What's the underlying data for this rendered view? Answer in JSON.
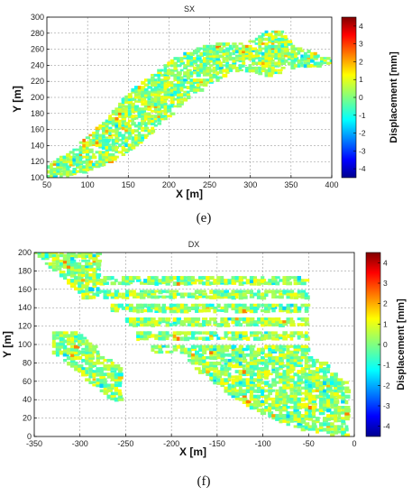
{
  "chart_data": [
    {
      "type": "heatmap",
      "title": "SX",
      "caption": "(e)",
      "xlabel": "X [m]",
      "ylabel": "Y [m]",
      "xlim": [
        50,
        400
      ],
      "ylim": [
        100,
        300
      ],
      "xticks": [
        50,
        100,
        150,
        200,
        250,
        300,
        350,
        400
      ],
      "yticks": [
        100,
        120,
        140,
        160,
        180,
        200,
        220,
        240,
        260,
        280,
        300
      ],
      "grid": true,
      "colorbar": {
        "label": "Displacement [mm]",
        "range": [
          -4.5,
          4.5
        ],
        "ticks": [
          -4,
          -3,
          -2,
          -1,
          0,
          1,
          2,
          3,
          4
        ],
        "tick_labels": [
          "-4",
          "-3",
          "-2",
          "-1",
          "0",
          "1",
          "2",
          "3",
          "4"
        ],
        "colormap": "jet"
      },
      "dominant_value_range": [
        -0.8,
        1.2
      ],
      "covered_region_description": "diagonal band from lower-left to upper-right",
      "coverage": [
        {
          "x": 55,
          "y0": 100,
          "y1": 118
        },
        {
          "x": 75,
          "y0": 100,
          "y1": 130
        },
        {
          "x": 100,
          "y0": 108,
          "y1": 150
        },
        {
          "x": 125,
          "y0": 118,
          "y1": 175
        },
        {
          "x": 150,
          "y0": 130,
          "y1": 205
        },
        {
          "x": 175,
          "y0": 150,
          "y1": 225
        },
        {
          "x": 200,
          "y0": 175,
          "y1": 245
        },
        {
          "x": 225,
          "y0": 200,
          "y1": 258
        },
        {
          "x": 250,
          "y0": 215,
          "y1": 266
        },
        {
          "x": 275,
          "y0": 230,
          "y1": 268
        },
        {
          "x": 300,
          "y0": 232,
          "y1": 270
        },
        {
          "x": 325,
          "y0": 225,
          "y1": 285
        },
        {
          "x": 340,
          "y0": 232,
          "y1": 282
        },
        {
          "x": 355,
          "y0": 236,
          "y1": 262
        },
        {
          "x": 375,
          "y0": 238,
          "y1": 258
        },
        {
          "x": 390,
          "y0": 240,
          "y1": 250
        }
      ],
      "colors": {
        "jet_low": "#00008f",
        "jet_mid": "#80ff80",
        "jet_high": "#800000"
      }
    },
    {
      "type": "heatmap",
      "title": "DX",
      "caption": "(f)",
      "xlabel": "X [m]",
      "ylabel": "Y [m]",
      "xlim": [
        -350,
        0
      ],
      "ylim": [
        0,
        200
      ],
      "xticks": [
        -350,
        -300,
        -250,
        -200,
        -150,
        -100,
        -50,
        0
      ],
      "yticks": [
        0,
        20,
        40,
        60,
        80,
        100,
        120,
        140,
        160,
        180,
        200
      ],
      "grid": true,
      "colorbar": {
        "label": "Displacement [mm]",
        "range": [
          -4.5,
          4.5
        ],
        "ticks": [
          -4,
          -3,
          -2,
          -1,
          0,
          1,
          2,
          3,
          4
        ],
        "tick_labels": [
          "-4",
          "-3",
          "-2",
          "-1",
          "0",
          "1",
          "2",
          "3",
          "4"
        ],
        "colormap": "jet"
      },
      "dominant_value_range": [
        -0.8,
        1.2
      ],
      "stripe_y_values": [
        170,
        155,
        140,
        125,
        110,
        95
      ],
      "stripe_x_range": [
        -300,
        -50
      ],
      "lower_wedge": [
        {
          "x": -180,
          "y0": 80,
          "y1": 92
        },
        {
          "x": -150,
          "y0": 55,
          "y1": 95
        },
        {
          "x": -120,
          "y0": 35,
          "y1": 95
        },
        {
          "x": -90,
          "y0": 20,
          "y1": 95
        },
        {
          "x": -60,
          "y0": 8,
          "y1": 90
        },
        {
          "x": -30,
          "y0": 2,
          "y1": 80
        },
        {
          "x": -12,
          "y0": 0,
          "y1": 60
        }
      ],
      "upper_left_region": {
        "x": [
          -350,
          -280
        ],
        "y": [
          150,
          200
        ]
      },
      "left_patch": {
        "x": [
          -330,
          -255
        ],
        "y": [
          40,
          115
        ]
      },
      "colors": {
        "jet_low": "#00008f",
        "jet_mid": "#80ff80",
        "jet_high": "#800000"
      }
    }
  ]
}
